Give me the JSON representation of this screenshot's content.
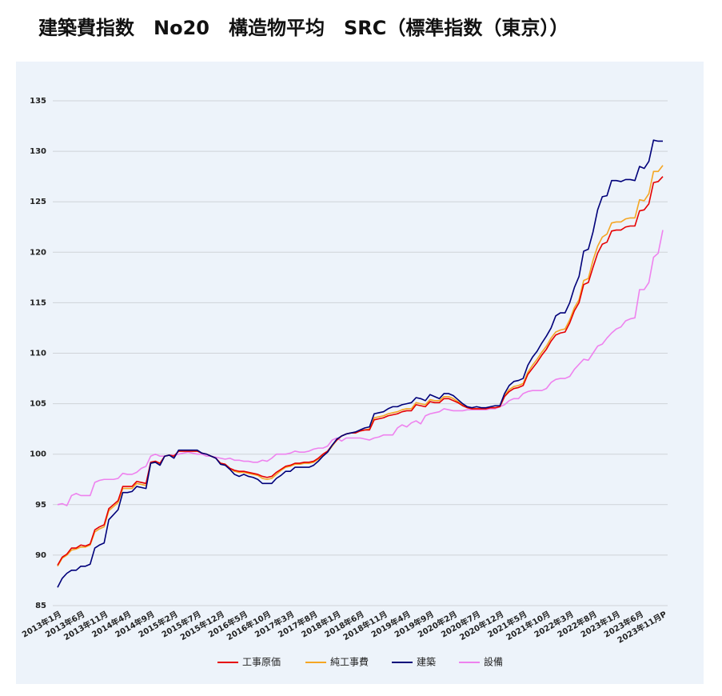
{
  "chart_data": {
    "type": "line",
    "title": "建築費指数　No20　構造物平均　SRC（標準指数（東京））",
    "categories": [
      "2013年1月",
      null,
      null,
      null,
      null,
      "2013年6月",
      null,
      null,
      null,
      null,
      "2013年11月",
      null,
      null,
      null,
      null,
      "2014年4月",
      null,
      null,
      null,
      null,
      "2014年9月",
      null,
      null,
      null,
      null,
      "2015年2月",
      null,
      null,
      null,
      null,
      "2015年7月",
      null,
      null,
      null,
      null,
      "2015年12月",
      null,
      null,
      null,
      null,
      "2016年5月",
      null,
      null,
      null,
      null,
      "2016年10月",
      null,
      null,
      null,
      null,
      "2017年3月",
      null,
      null,
      null,
      null,
      "2017年8月",
      null,
      null,
      null,
      null,
      "2018年1月",
      null,
      null,
      null,
      null,
      "2018年6月",
      null,
      null,
      null,
      null,
      "2018年11月",
      null,
      null,
      null,
      null,
      "2019年4月",
      null,
      null,
      null,
      null,
      "2019年9月",
      null,
      null,
      null,
      null,
      "2020年2月",
      null,
      null,
      null,
      null,
      "2020年7月",
      null,
      null,
      null,
      null,
      "2020年12月",
      null,
      null,
      null,
      null,
      "2021年5月",
      null,
      null,
      null,
      null,
      "2021年10月",
      null,
      null,
      null,
      null,
      "2022年3月",
      null,
      null,
      null,
      null,
      "2022年8月",
      null,
      null,
      null,
      null,
      "2023年1月",
      null,
      null,
      null,
      null,
      "2023年6月",
      null,
      null,
      null,
      null,
      "2023年11月P"
    ],
    "series": [
      {
        "name": "工事原価",
        "color": "#e60000",
        "values": [
          89.0,
          89.8,
          90.1,
          90.7,
          90.7,
          91.0,
          90.9,
          91.1,
          92.5,
          92.8,
          93.0,
          94.6,
          95.0,
          95.4,
          96.8,
          96.8,
          96.8,
          97.3,
          97.2,
          97.1,
          99.2,
          99.3,
          99.1,
          99.8,
          99.9,
          99.8,
          100.3,
          100.3,
          100.3,
          100.3,
          100.3,
          100.1,
          100.0,
          99.8,
          99.6,
          99.1,
          99.0,
          98.6,
          98.4,
          98.3,
          98.3,
          98.2,
          98.1,
          98.0,
          97.8,
          97.7,
          97.8,
          98.2,
          98.5,
          98.8,
          98.9,
          99.1,
          99.1,
          99.2,
          99.2,
          99.3,
          99.6,
          100.0,
          100.3,
          100.9,
          101.4,
          101.8,
          102.0,
          102.1,
          102.1,
          102.3,
          102.4,
          102.4,
          103.4,
          103.5,
          103.6,
          103.8,
          103.9,
          104.0,
          104.2,
          104.3,
          104.3,
          104.9,
          104.8,
          104.7,
          105.2,
          105.1,
          105.1,
          105.5,
          105.5,
          105.3,
          105.1,
          104.8,
          104.6,
          104.5,
          104.5,
          104.5,
          104.5,
          104.6,
          104.6,
          104.7,
          105.7,
          106.2,
          106.5,
          106.6,
          106.8,
          107.9,
          108.5,
          109.1,
          109.8,
          110.4,
          111.2,
          111.8,
          112.0,
          112.1,
          113.0,
          114.2,
          115.0,
          116.8,
          117.0,
          118.5,
          119.9,
          120.8,
          121.0,
          122.1,
          122.2,
          122.2,
          122.5,
          122.6,
          122.6,
          124.1,
          124.2,
          124.8,
          126.9,
          127.0,
          127.5
        ]
      },
      {
        "name": "純工事費",
        "color": "#f5a623",
        "values": [
          88.9,
          89.7,
          90.0,
          90.5,
          90.6,
          90.8,
          90.8,
          91.0,
          92.3,
          92.6,
          92.8,
          94.4,
          94.8,
          95.2,
          96.6,
          96.6,
          96.6,
          97.1,
          97.0,
          96.9,
          99.1,
          99.2,
          99.0,
          99.8,
          99.9,
          99.8,
          100.3,
          100.3,
          100.3,
          100.3,
          100.3,
          100.1,
          100.0,
          99.8,
          99.6,
          99.1,
          99.0,
          98.6,
          98.3,
          98.2,
          98.2,
          98.1,
          98.0,
          97.9,
          97.6,
          97.5,
          97.6,
          98.0,
          98.4,
          98.7,
          98.8,
          99.0,
          99.0,
          99.1,
          99.1,
          99.2,
          99.5,
          99.9,
          100.2,
          100.8,
          101.4,
          101.8,
          102.0,
          102.1,
          102.1,
          102.3,
          102.4,
          102.5,
          103.6,
          103.7,
          103.8,
          104.0,
          104.1,
          104.2,
          104.4,
          104.5,
          104.5,
          105.1,
          105.0,
          104.9,
          105.4,
          105.3,
          105.3,
          105.7,
          105.7,
          105.5,
          105.2,
          104.9,
          104.6,
          104.5,
          104.5,
          104.5,
          104.5,
          104.6,
          104.6,
          104.7,
          105.8,
          106.4,
          106.7,
          106.8,
          107.0,
          108.1,
          108.8,
          109.4,
          110.1,
          110.7,
          111.5,
          112.1,
          112.3,
          112.4,
          113.3,
          114.5,
          115.3,
          117.2,
          117.4,
          119.2,
          120.6,
          121.5,
          121.8,
          122.9,
          123.0,
          123.0,
          123.3,
          123.4,
          123.4,
          125.2,
          125.1,
          125.8,
          128.0,
          128.0,
          128.6
        ]
      },
      {
        "name": "建築",
        "color": "#00007a",
        "values": [
          86.8,
          87.7,
          88.2,
          88.5,
          88.5,
          88.9,
          88.9,
          89.1,
          90.7,
          91.0,
          91.2,
          93.5,
          94.0,
          94.5,
          96.2,
          96.2,
          96.3,
          96.8,
          96.7,
          96.6,
          99.1,
          99.2,
          98.9,
          99.8,
          99.9,
          99.6,
          100.4,
          100.4,
          100.4,
          100.4,
          100.4,
          100.1,
          100.0,
          99.8,
          99.6,
          99.0,
          98.9,
          98.5,
          98.0,
          97.8,
          98.0,
          97.8,
          97.7,
          97.5,
          97.1,
          97.1,
          97.1,
          97.6,
          97.9,
          98.3,
          98.3,
          98.7,
          98.7,
          98.7,
          98.7,
          98.9,
          99.3,
          99.8,
          100.2,
          100.9,
          101.5,
          101.8,
          102.0,
          102.1,
          102.2,
          102.4,
          102.6,
          102.7,
          104.0,
          104.1,
          104.2,
          104.5,
          104.7,
          104.7,
          104.9,
          105.0,
          105.1,
          105.6,
          105.5,
          105.3,
          105.9,
          105.7,
          105.5,
          106.0,
          106.0,
          105.8,
          105.4,
          105.0,
          104.7,
          104.6,
          104.7,
          104.6,
          104.6,
          104.7,
          104.8,
          104.8,
          106.0,
          106.8,
          107.2,
          107.3,
          107.5,
          108.8,
          109.6,
          110.2,
          111.0,
          111.7,
          112.5,
          113.7,
          114.0,
          114.0,
          115.0,
          116.5,
          117.6,
          120.1,
          120.3,
          122.0,
          124.2,
          125.5,
          125.6,
          127.1,
          127.1,
          127.0,
          127.2,
          127.2,
          127.1,
          128.5,
          128.3,
          129.0,
          131.1,
          131.0,
          131.0
        ]
      },
      {
        "name": "設備",
        "color": "#ee82ee",
        "values": [
          95.0,
          95.1,
          94.9,
          95.9,
          96.1,
          95.9,
          95.9,
          95.9,
          97.2,
          97.4,
          97.5,
          97.5,
          97.5,
          97.6,
          98.1,
          98.0,
          98.0,
          98.2,
          98.6,
          98.8,
          99.8,
          100.0,
          99.8,
          99.8,
          99.9,
          99.9,
          100.0,
          100.1,
          100.2,
          100.1,
          100.0,
          100.0,
          99.8,
          99.8,
          99.7,
          99.6,
          99.5,
          99.6,
          99.4,
          99.4,
          99.3,
          99.3,
          99.2,
          99.2,
          99.4,
          99.3,
          99.6,
          100.0,
          100.0,
          100.0,
          100.1,
          100.3,
          100.2,
          100.2,
          100.3,
          100.5,
          100.6,
          100.6,
          100.8,
          101.4,
          101.6,
          101.3,
          101.6,
          101.6,
          101.6,
          101.6,
          101.5,
          101.4,
          101.6,
          101.7,
          101.9,
          101.9,
          101.9,
          102.6,
          102.9,
          102.7,
          103.1,
          103.3,
          103.0,
          103.8,
          104.0,
          104.1,
          104.2,
          104.5,
          104.4,
          104.3,
          104.3,
          104.3,
          104.4,
          104.4,
          104.4,
          104.4,
          104.4,
          104.5,
          104.5,
          104.7,
          104.9,
          105.3,
          105.5,
          105.5,
          106.0,
          106.2,
          106.3,
          106.3,
          106.3,
          106.5,
          107.1,
          107.4,
          107.5,
          107.5,
          107.7,
          108.4,
          108.9,
          109.4,
          109.3,
          110.0,
          110.7,
          110.9,
          111.5,
          112.0,
          112.4,
          112.6,
          113.2,
          113.4,
          113.5,
          116.3,
          116.3,
          117.0,
          119.5,
          119.9,
          122.2
        ]
      }
    ],
    "ylim": [
      85,
      135
    ],
    "yticks": [
      85,
      90,
      95,
      100,
      105,
      110,
      115,
      120,
      125,
      130,
      135
    ],
    "grid": true,
    "legend": "bottom"
  }
}
